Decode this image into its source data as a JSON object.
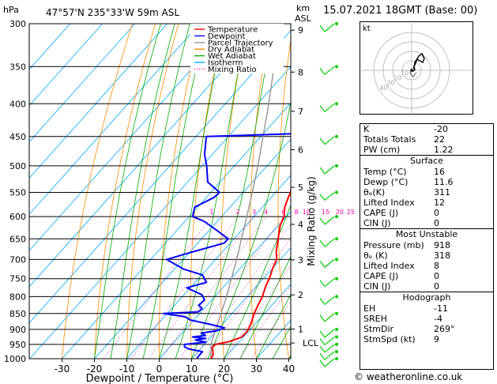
{
  "header": {
    "unit_hpa": "hPa",
    "location": "47°57'N  235°33'W  59m  ASL",
    "unit_km": "km",
    "unit_asl": "ASL",
    "datetime": "15.07.2021  18GMT  (Base: 00)"
  },
  "chart_data": {
    "type": "line",
    "xlabel": "Dewpoint / Temperature (°C)",
    "ylabel": "hPa",
    "right_axis_label": "Mixing Ratio (g/kg)",
    "xlim": [
      -40,
      40
    ],
    "x_ticks": [
      -30,
      -20,
      -10,
      0,
      10,
      20,
      30,
      40
    ],
    "pressure_ticks": [
      300,
      350,
      400,
      450,
      500,
      550,
      600,
      650,
      700,
      750,
      800,
      850,
      900,
      950,
      1000
    ],
    "km_ticks": [
      {
        "label": "9",
        "p": 307
      },
      {
        "label": "8",
        "p": 357
      },
      {
        "label": "7",
        "p": 411
      },
      {
        "label": "6",
        "p": 472
      },
      {
        "label": "5",
        "p": 540
      },
      {
        "label": "4",
        "p": 617
      },
      {
        "label": "3",
        "p": 701
      },
      {
        "label": "2",
        "p": 795
      },
      {
        "label": "1",
        "p": 899
      }
    ],
    "lcl": {
      "label": "LCL",
      "p": 945
    },
    "mixing_ratio_labels": [
      "1",
      "2",
      "3",
      "4",
      "6",
      "8",
      "10",
      "15",
      "20",
      "25"
    ],
    "mixing_ratio_values": [
      1,
      2,
      3,
      4,
      6,
      8,
      10,
      15,
      20,
      25
    ],
    "legend": [
      {
        "name": "Temperature",
        "color": "#ff0000",
        "style": "solid"
      },
      {
        "name": "Dewpoint",
        "color": "#0000ff",
        "style": "solid"
      },
      {
        "name": "Parcel Trajectory",
        "color": "#999999",
        "style": "solid"
      },
      {
        "name": "Dry Adiabat",
        "color": "#ff8c00",
        "style": "solid"
      },
      {
        "name": "Wet Adiabat",
        "color": "#00aa00",
        "style": "solid"
      },
      {
        "name": "Isotherm",
        "color": "#00aaff",
        "style": "solid"
      },
      {
        "name": "Mixing Ratio",
        "color": "#ff00aa",
        "style": "dotted"
      }
    ],
    "series": [
      {
        "name": "Temperature",
        "color": "#ff0000",
        "points": [
          [
            1000,
            16
          ],
          [
            985,
            15.5
          ],
          [
            970,
            14.2
          ],
          [
            960,
            13.2
          ],
          [
            950,
            13.5
          ],
          [
            940,
            17
          ],
          [
            925,
            19.5
          ],
          [
            910,
            19.6
          ],
          [
            900,
            19.4
          ],
          [
            880,
            18.6
          ],
          [
            850,
            16.8
          ],
          [
            820,
            15.5
          ],
          [
            800,
            14.7
          ],
          [
            770,
            12.8
          ],
          [
            750,
            11.9
          ],
          [
            720,
            9.9
          ],
          [
            700,
            8.9
          ],
          [
            680,
            6.5
          ],
          [
            650,
            3.6
          ],
          [
            620,
            0.6
          ],
          [
            600,
            -0.7
          ],
          [
            580,
            -3.1
          ],
          [
            560,
            -4.7
          ],
          [
            550,
            -5.4
          ],
          [
            520,
            -8.9
          ],
          [
            500,
            -11
          ],
          [
            480,
            -13.7
          ],
          [
            450,
            -17.2
          ],
          [
            420,
            -21.4
          ],
          [
            400,
            -24.8
          ],
          [
            380,
            -28.4
          ],
          [
            350,
            -34
          ],
          [
            330,
            -37.2
          ],
          [
            320,
            -38.7
          ],
          [
            300,
            -42.9
          ]
        ]
      },
      {
        "name": "Dewpoint",
        "color": "#0000ff",
        "points": [
          [
            1000,
            11.6
          ],
          [
            990,
            11.4
          ],
          [
            975,
            11.4
          ],
          [
            965,
            6.3
          ],
          [
            958,
            4.5
          ],
          [
            950,
            3.9
          ],
          [
            942,
            9.8
          ],
          [
            935,
            6
          ],
          [
            930,
            8.8
          ],
          [
            925,
            4.3
          ],
          [
            920,
            7.9
          ],
          [
            912,
            5.9
          ],
          [
            905,
            9.9
          ],
          [
            895,
            11.6
          ],
          [
            885,
            6.9
          ],
          [
            870,
            -1.1
          ],
          [
            860,
            -3.6
          ],
          [
            850,
            -11.2
          ],
          [
            845,
            -0.9
          ],
          [
            835,
            -0.6
          ],
          [
            825,
            -2.6
          ],
          [
            810,
            -2.2
          ],
          [
            795,
            -4.4
          ],
          [
            775,
            -11.1
          ],
          [
            760,
            -6.5
          ],
          [
            740,
            -9.8
          ],
          [
            725,
            -17.1
          ],
          [
            700,
            -25.1
          ],
          [
            685,
            -20.5
          ],
          [
            660,
            -11.9
          ],
          [
            650,
            -11.8
          ],
          [
            630,
            -17.8
          ],
          [
            610,
            -24.2
          ],
          [
            600,
            -28.9
          ],
          [
            580,
            -30.9
          ],
          [
            560,
            -27.6
          ],
          [
            550,
            -27.3
          ],
          [
            530,
            -33.8
          ],
          [
            500,
            -38.6
          ],
          [
            480,
            -42.4
          ],
          [
            450,
            -46.8
          ],
          [
            445,
            -17.9
          ],
          [
            430,
            -17.9
          ],
          [
            415,
            -17.7
          ],
          [
            400,
            -20.8
          ],
          [
            385,
            -23.9
          ],
          [
            370,
            -28.4
          ],
          [
            365,
            -24.4
          ],
          [
            355,
            -32.4
          ],
          [
            340,
            -29.4
          ],
          [
            330,
            -33.9
          ],
          [
            318,
            -33.6
          ],
          [
            310,
            -32.4
          ],
          [
            300,
            -36.9
          ]
        ]
      },
      {
        "name": "Parcel Trajectory",
        "color": "#999999",
        "points": [
          [
            1000,
            16
          ],
          [
            950,
            12
          ],
          [
            918,
            10.3
          ],
          [
            850,
            6.6
          ],
          [
            800,
            3.6
          ],
          [
            750,
            0.2
          ],
          [
            700,
            -3.5
          ],
          [
            650,
            -7.7
          ],
          [
            600,
            -12.2
          ],
          [
            550,
            -17.2
          ],
          [
            500,
            -22.8
          ],
          [
            450,
            -29.3
          ],
          [
            400,
            -36.6
          ],
          [
            350,
            -45.2
          ],
          [
            300,
            -55.2
          ]
        ]
      }
    ]
  },
  "hodograph": {
    "unit_label": "kt",
    "ring_labels": [
      "10",
      "20",
      "30",
      "40"
    ]
  },
  "indices": {
    "general": [
      {
        "label": "K",
        "value": "-20"
      },
      {
        "label": "Totals Totals",
        "value": "22"
      },
      {
        "label": "PW (cm)",
        "value": "1.22"
      }
    ],
    "surface": {
      "title": "Surface",
      "rows": [
        {
          "label": "Temp (°C)",
          "value": "16"
        },
        {
          "label": "Dewp (°C)",
          "value": "11.6"
        },
        {
          "label": "θₑ(K)",
          "value": "311"
        },
        {
          "label": "Lifted Index",
          "value": "12"
        },
        {
          "label": "CAPE (J)",
          "value": "0"
        },
        {
          "label": "CIN (J)",
          "value": "0"
        }
      ]
    },
    "most_unstable": {
      "title": "Most Unstable",
      "rows": [
        {
          "label": "Pressure (mb)",
          "value": "918"
        },
        {
          "label": "θₑ (K)",
          "value": "318"
        },
        {
          "label": "Lifted Index",
          "value": "8"
        },
        {
          "label": "CAPE (J)",
          "value": "0"
        },
        {
          "label": "CIN (J)",
          "value": "0"
        }
      ]
    },
    "hodograph": {
      "title": "Hodograph",
      "rows": [
        {
          "label": "EH",
          "value": "-11"
        },
        {
          "label": "SREH",
          "value": "-4"
        },
        {
          "label": "StmDir",
          "value": "269°"
        },
        {
          "label": "StmSpd (kt)",
          "value": "9"
        }
      ]
    }
  },
  "footer": {
    "copyright": "© weatheronline.co.uk"
  },
  "colors": {
    "temperature": "#ff0000",
    "dewpoint": "#0000ff",
    "parcel": "#999999",
    "dry_adiabat": "#ff8c00",
    "wet_adiabat": "#00aa00",
    "isotherm": "#00aaff",
    "mixing_ratio": "#ff00aa",
    "wind_barb": "#00cc00"
  }
}
